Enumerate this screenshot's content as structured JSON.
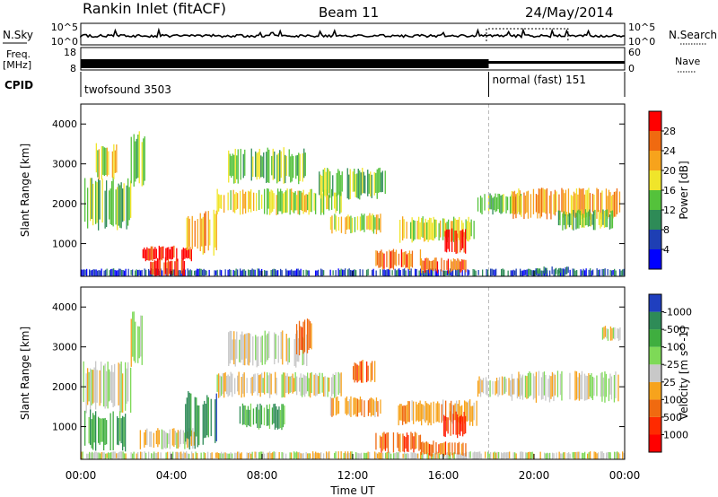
{
  "header": {
    "station": "Rankin Inlet (fitACF)",
    "beam": "Beam 11",
    "date": "24/May/2014"
  },
  "params": {
    "nsky_label": "N.Sky",
    "nsearch_label": "N.Search",
    "nsky_ticks": [
      "10^5",
      "10^0"
    ],
    "nsearch_ticks": [
      "10^5",
      "10^0"
    ],
    "freq_label_1": "Freq.",
    "freq_label_2": "[MHz]",
    "freq_ticks": [
      "18",
      "8"
    ],
    "nave_label": "Nave",
    "nave_ticks": [
      "60",
      "0"
    ],
    "cpid_label": "CPID",
    "modes": [
      {
        "name": "twofsound 3503",
        "start_h": 0,
        "end_h": 18
      },
      {
        "name": "normal (fast) 151",
        "start_h": 18,
        "end_h": 24
      }
    ]
  },
  "chart_data": [
    {
      "type": "heatmap",
      "panel": "power",
      "xlabel": "",
      "ylabel": "Slant Range [km]",
      "xlim": [
        0,
        24
      ],
      "ylim": [
        180,
        4500
      ],
      "yticks": [
        "1000",
        "2000",
        "3000",
        "4000"
      ],
      "colorbar": {
        "label": "Power [dB]",
        "ticks": [
          "4",
          "8",
          "12",
          "16",
          "20",
          "24",
          "28"
        ],
        "colors": [
          "#0000ff",
          "#1e3fb4",
          "#2e8b57",
          "#54c23b",
          "#f0e52a",
          "#f7a31c",
          "#f06a10",
          "#ff0000"
        ]
      },
      "regions": [
        {
          "t0": 0.0,
          "t1": 24.0,
          "r0": 180,
          "r1": 350,
          "level": 1
        },
        {
          "t0": 0.1,
          "t1": 2.2,
          "r0": 1500,
          "r1": 2500,
          "level": 3
        },
        {
          "t0": 0.6,
          "t1": 1.6,
          "r0": 2700,
          "r1": 3400,
          "level": 4
        },
        {
          "t0": 2.2,
          "t1": 2.8,
          "r0": 2600,
          "r1": 3700,
          "level": 3
        },
        {
          "t0": 2.6,
          "t1": 5.0,
          "r0": 600,
          "r1": 900,
          "level": 7
        },
        {
          "t0": 3.0,
          "t1": 4.6,
          "r0": 180,
          "r1": 600,
          "level": 7
        },
        {
          "t0": 4.6,
          "t1": 6.0,
          "r0": 800,
          "r1": 1700,
          "level": 5
        },
        {
          "t0": 6.0,
          "t1": 11.5,
          "r0": 1800,
          "r1": 2300,
          "level": 4
        },
        {
          "t0": 6.5,
          "t1": 10.0,
          "r0": 2600,
          "r1": 3300,
          "level": 3
        },
        {
          "t0": 10.5,
          "t1": 13.5,
          "r0": 2200,
          "r1": 2800,
          "level": 3
        },
        {
          "t0": 11.0,
          "t1": 13.2,
          "r0": 1300,
          "r1": 1700,
          "level": 4
        },
        {
          "t0": 13.0,
          "t1": 15.0,
          "r0": 400,
          "r1": 800,
          "level": 6
        },
        {
          "t0": 14.0,
          "t1": 17.5,
          "r0": 1100,
          "r1": 1600,
          "level": 4
        },
        {
          "t0": 15.0,
          "t1": 17.0,
          "r0": 300,
          "r1": 600,
          "level": 6
        },
        {
          "t0": 16.0,
          "t1": 17.0,
          "r0": 800,
          "r1": 1300,
          "level": 7
        },
        {
          "t0": 17.5,
          "t1": 19.5,
          "r0": 1800,
          "r1": 2200,
          "level": 3
        },
        {
          "t0": 19.0,
          "t1": 23.8,
          "r0": 1700,
          "r1": 2300,
          "level": 5
        },
        {
          "t0": 21.0,
          "t1": 23.5,
          "r0": 1400,
          "r1": 1800,
          "level": 3
        },
        {
          "t0": 20.0,
          "t1": 21.5,
          "r0": 250,
          "r1": 400,
          "level": 2
        }
      ]
    },
    {
      "type": "heatmap",
      "panel": "velocity",
      "xlabel": "Time UT",
      "ylabel": "Slant Range [km]",
      "xlim": [
        0,
        24
      ],
      "ylim": [
        180,
        4500
      ],
      "xticks": [
        "00:00",
        "04:00",
        "08:00",
        "12:00",
        "16:00",
        "20:00",
        "00:00"
      ],
      "yticks": [
        "1000",
        "2000",
        "3000",
        "4000"
      ],
      "colorbar": {
        "label": "Velocity [m s^-1]",
        "ticks": [
          "1000",
          "500",
          "100",
          "25",
          "-25",
          "-100",
          "-500",
          "-1000"
        ],
        "colors": [
          "#1f3fbf",
          "#2e8b57",
          "#3fae3f",
          "#7ed957",
          "#c8c8c8",
          "#f7a31c",
          "#f06a10",
          "#ff2a00",
          "#ff0000"
        ]
      },
      "regions": [
        {
          "t0": 0.0,
          "t1": 24.0,
          "r0": 180,
          "r1": 350,
          "level": 4
        },
        {
          "t0": 0.1,
          "t1": 2.2,
          "r0": 1500,
          "r1": 2500,
          "level": 4
        },
        {
          "t0": 0.1,
          "t1": 2.0,
          "r0": 500,
          "r1": 1300,
          "level": 2
        },
        {
          "t0": 2.2,
          "t1": 2.8,
          "r0": 2600,
          "r1": 3700,
          "level": 4
        },
        {
          "t0": 2.6,
          "t1": 5.0,
          "r0": 500,
          "r1": 900,
          "level": 4
        },
        {
          "t0": 4.6,
          "t1": 6.0,
          "r0": 600,
          "r1": 1700,
          "level": 1
        },
        {
          "t0": 6.0,
          "t1": 11.5,
          "r0": 1800,
          "r1": 2300,
          "level": 4
        },
        {
          "t0": 6.5,
          "t1": 10.0,
          "r0": 2600,
          "r1": 3300,
          "level": 4
        },
        {
          "t0": 7.0,
          "t1": 9.0,
          "r0": 1000,
          "r1": 1500,
          "level": 2
        },
        {
          "t0": 9.5,
          "t1": 10.2,
          "r0": 2900,
          "r1": 3600,
          "level": 6
        },
        {
          "t0": 11.0,
          "t1": 13.2,
          "r0": 1300,
          "r1": 1700,
          "level": 5
        },
        {
          "t0": 12.0,
          "t1": 13.0,
          "r0": 2100,
          "r1": 2600,
          "level": 6
        },
        {
          "t0": 13.0,
          "t1": 15.0,
          "r0": 400,
          "r1": 800,
          "level": 6
        },
        {
          "t0": 14.0,
          "t1": 17.5,
          "r0": 1100,
          "r1": 1600,
          "level": 5
        },
        {
          "t0": 15.0,
          "t1": 17.0,
          "r0": 300,
          "r1": 600,
          "level": 6
        },
        {
          "t0": 16.0,
          "t1": 17.0,
          "r0": 800,
          "r1": 1300,
          "level": 7
        },
        {
          "t0": 17.5,
          "t1": 19.5,
          "r0": 1800,
          "r1": 2200,
          "level": 4
        },
        {
          "t0": 19.0,
          "t1": 23.8,
          "r0": 1700,
          "r1": 2300,
          "level": 4
        },
        {
          "t0": 23.0,
          "t1": 23.8,
          "r0": 3200,
          "r1": 3500,
          "level": 4
        }
      ]
    }
  ]
}
